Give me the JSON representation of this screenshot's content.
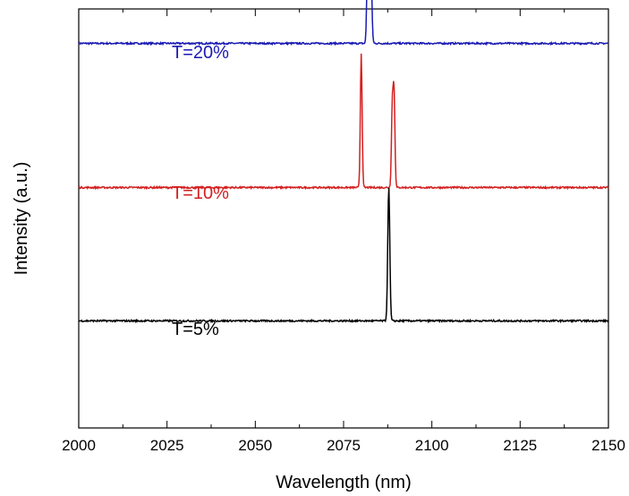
{
  "chart_data": {
    "type": "line",
    "xlabel": "Wavelength (nm)",
    "ylabel": "Intensity (a.u.)",
    "xlim": [
      2000,
      2150
    ],
    "x_ticks": [
      "2000",
      "2025",
      "2050",
      "2075",
      "2100",
      "2125",
      "2150"
    ],
    "y_ticks_labeled": false,
    "grid": false,
    "layout": "stacked offset spectra, labels placed beside each trace",
    "series": [
      {
        "name": "T=20%",
        "color": "#1a1ab4",
        "baseline": 0.73,
        "peaks": [
          {
            "x": 2081.8,
            "height": 0.19,
            "width": 0.35
          },
          {
            "x": 2082.6,
            "height": 0.26,
            "width": 0.45
          }
        ]
      },
      {
        "name": "T=10%",
        "color": "#d42020",
        "baseline": 0.33,
        "peaks": [
          {
            "x": 2080.0,
            "height": 0.32,
            "width": 0.35
          },
          {
            "x": 2088.8,
            "height": 0.19,
            "width": 0.35
          },
          {
            "x": 2089.3,
            "height": 0.22,
            "width": 0.35
          }
        ]
      },
      {
        "name": "T=5%",
        "color": "#000000",
        "baseline": -0.04,
        "peaks": [
          {
            "x": 2087.8,
            "height": 0.32,
            "width": 0.4
          }
        ]
      }
    ]
  }
}
